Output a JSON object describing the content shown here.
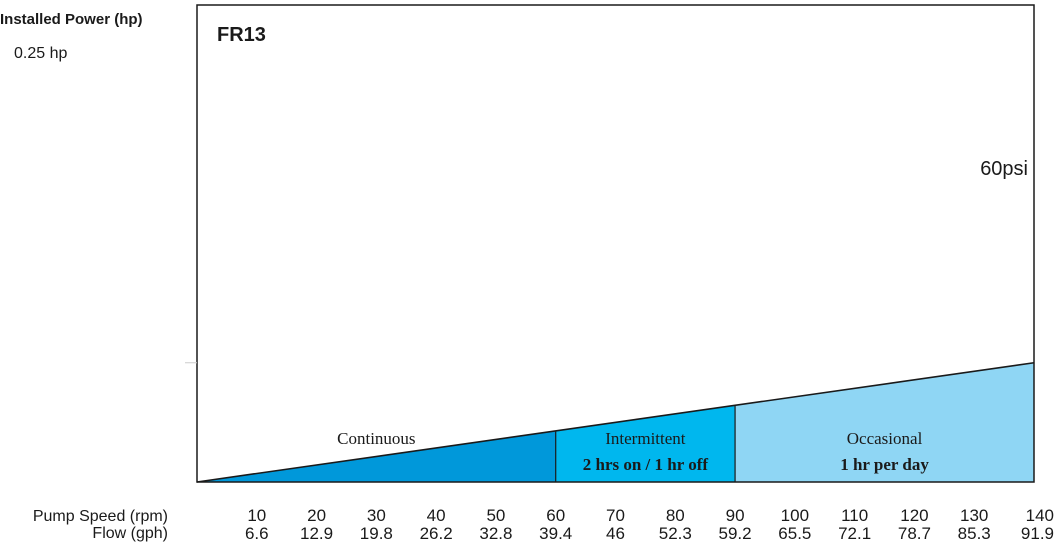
{
  "chart_data": {
    "type": "area",
    "title": "FR13",
    "installed_power_label": "Installed Power (hp)",
    "installed_power_value": "0.25 hp",
    "pressure_label": "60psi",
    "x_axis_label_rpm": "Pump Speed (rpm)",
    "x_axis_label_flow": "Flow (gph)",
    "xlim": [
      0,
      140
    ],
    "ylim": [
      0,
      1
    ],
    "line": {
      "x": [
        0,
        140
      ],
      "y": [
        0,
        0.25
      ]
    },
    "rpm_ticks": [
      "10",
      "20",
      "30",
      "40",
      "50",
      "60",
      "70",
      "80",
      "90",
      "100",
      "110",
      "120",
      "130",
      "140"
    ],
    "flow_ticks": [
      "6.6",
      "12.9",
      "19.8",
      "26.2",
      "32.8",
      "39.4",
      "46",
      "52.3",
      "59.2",
      "65.5",
      "72.1",
      "78.7",
      "85.3",
      "91.9"
    ],
    "zones": [
      {
        "name": "Continuous",
        "detail": "",
        "x_start": 0,
        "x_end": 60,
        "color": "#0098DA"
      },
      {
        "name": "Intermittent",
        "detail": "2 hrs on / 1 hr off",
        "x_start": 60,
        "x_end": 90,
        "color": "#00B7EE"
      },
      {
        "name": "Occasional",
        "detail": "1 hr per day",
        "x_start": 90,
        "x_end": 140,
        "color": "#8FD6F4"
      }
    ]
  }
}
